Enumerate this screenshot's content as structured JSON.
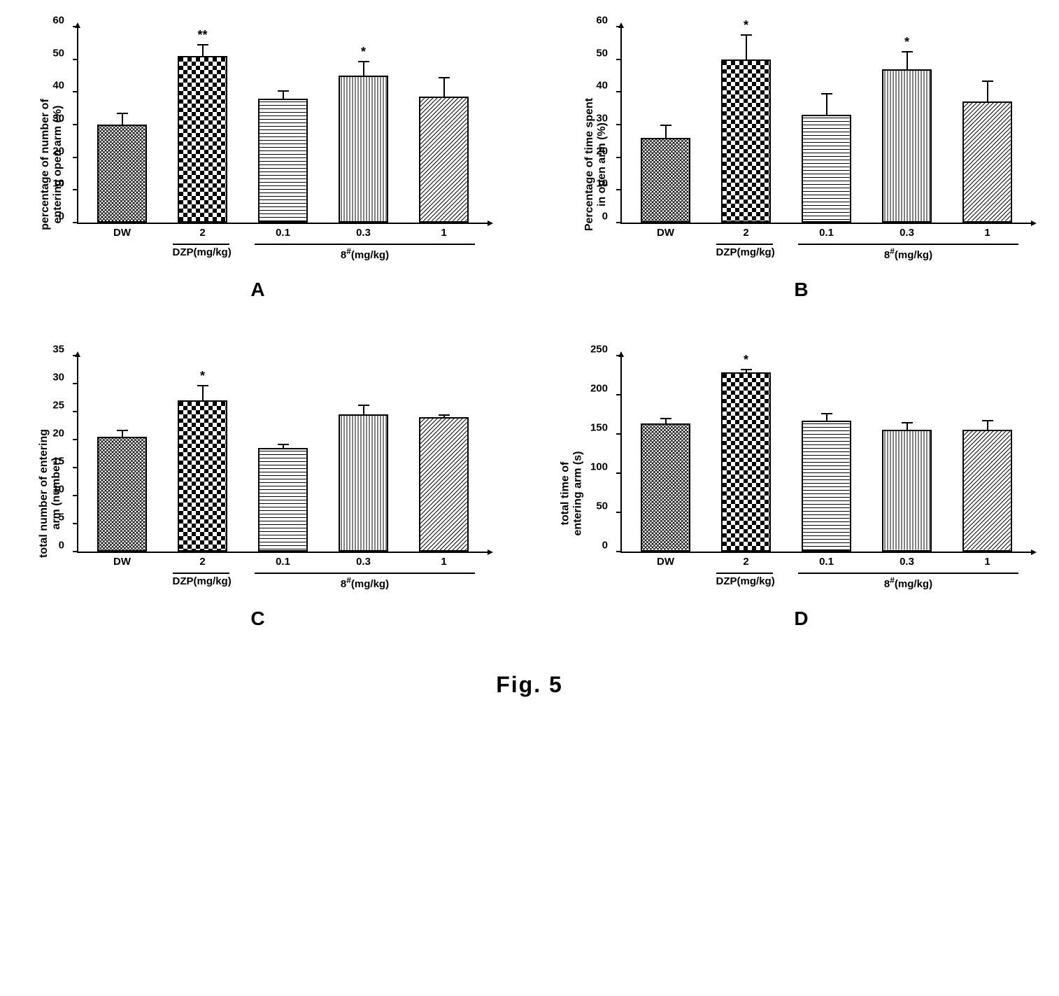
{
  "figure_caption": "Fig. 5",
  "colors": {
    "axis": "#000000",
    "bar_border": "#000000",
    "background": "#ffffff",
    "text": "#000000"
  },
  "patterns": {
    "crosshatch_dense": {
      "type": "crosshatch",
      "spacing": 5,
      "stroke": "#000000"
    },
    "checker": {
      "type": "checker",
      "size": 6,
      "color": "#000000"
    },
    "horizontal_lines": {
      "type": "hlines",
      "spacing": 5,
      "stroke": "#000000"
    },
    "vertical_lines": {
      "type": "vlines",
      "spacing": 4,
      "stroke": "#000000"
    },
    "diagonal_lines": {
      "type": "diag",
      "spacing": 6,
      "stroke": "#000000"
    }
  },
  "common_x": {
    "categories": [
      "DW",
      "2",
      "0.1",
      "0.3",
      "1"
    ],
    "groups": [
      {
        "label": "DZP(mg/kg)",
        "start_idx": 1,
        "end_idx": 1
      },
      {
        "label_html": "8<sup>#</sup>(mg/kg)",
        "start_idx": 2,
        "end_idx": 4
      }
    ],
    "bar_patterns": [
      "crosshatch_dense",
      "checker",
      "horizontal_lines",
      "vertical_lines",
      "diagonal_lines"
    ]
  },
  "panels": {
    "A": {
      "type": "bar",
      "panel_label": "A",
      "y_label": "percentage of number of\nentering open arm (%)",
      "ylim": [
        0,
        60
      ],
      "ytick_step": 10,
      "values": [
        30,
        51,
        38,
        45,
        38.5
      ],
      "errors": [
        4,
        4,
        3,
        5,
        6.5
      ],
      "significance": [
        "",
        "**",
        "",
        "*",
        ""
      ],
      "bar_width": 0.7,
      "label_fontsize": 16,
      "tick_fontsize": 15
    },
    "B": {
      "type": "bar",
      "panel_label": "B",
      "y_label": "Percentage of time spent\nin open arm (%)",
      "ylim": [
        0,
        60
      ],
      "ytick_step": 10,
      "values": [
        26,
        50,
        33,
        47,
        37
      ],
      "errors": [
        4.5,
        8,
        7,
        6,
        7
      ],
      "significance": [
        "",
        "*",
        "",
        "*",
        ""
      ],
      "bar_width": 0.7,
      "label_fontsize": 16,
      "tick_fontsize": 15
    },
    "C": {
      "type": "bar",
      "panel_label": "C",
      "y_label": "total number of entering\narm (number)",
      "ylim": [
        0,
        35
      ],
      "ytick_step": 5,
      "values": [
        20.5,
        27,
        18.5,
        24.5,
        24
      ],
      "errors": [
        1.5,
        3,
        1,
        2,
        0.7
      ],
      "significance": [
        "",
        "*",
        "",
        "",
        ""
      ],
      "bar_width": 0.7,
      "label_fontsize": 16,
      "tick_fontsize": 15
    },
    "D": {
      "type": "bar",
      "panel_label": "D",
      "y_label": "total time of\nentering arm (s)",
      "ylim": [
        0,
        250
      ],
      "ytick_step": 50,
      "values": [
        163,
        229,
        167,
        155,
        155
      ],
      "errors": [
        9,
        6,
        12,
        12,
        15
      ],
      "significance": [
        "",
        "*",
        "",
        "",
        ""
      ],
      "bar_width": 0.7,
      "label_fontsize": 16,
      "tick_fontsize": 15
    }
  }
}
